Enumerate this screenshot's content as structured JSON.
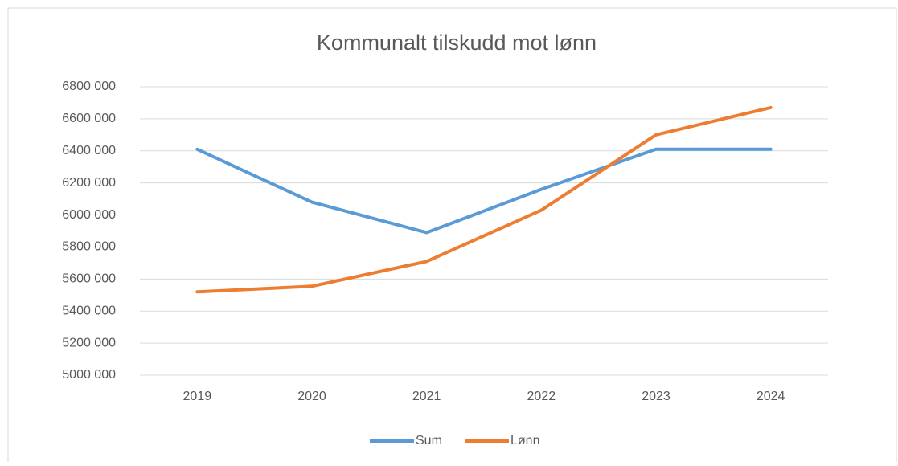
{
  "chart_data": {
    "type": "line",
    "title": "Kommunalt tilskudd mot lønn",
    "categories": [
      "2019",
      "2020",
      "2021",
      "2022",
      "2023",
      "2024"
    ],
    "series": [
      {
        "name": "Sum",
        "color": "#5b9bd5",
        "values": [
          6410000,
          6080000,
          5890000,
          6160000,
          6410000,
          6410000
        ]
      },
      {
        "name": "Lønn",
        "color": "#ed7d31",
        "values": [
          5520000,
          5555000,
          5710000,
          6030000,
          6500000,
          6670000
        ]
      }
    ],
    "ylim": [
      5000000,
      6800000
    ],
    "yticks": [
      {
        "value": 5000000,
        "label": "5000 000"
      },
      {
        "value": 5200000,
        "label": "5200 000"
      },
      {
        "value": 5400000,
        "label": "5400 000"
      },
      {
        "value": 5600000,
        "label": "5600 000"
      },
      {
        "value": 5800000,
        "label": "5800 000"
      },
      {
        "value": 6000000,
        "label": "6000 000"
      },
      {
        "value": 6200000,
        "label": "6200 000"
      },
      {
        "value": 6400000,
        "label": "6400 000"
      },
      {
        "value": 6600000,
        "label": "6600 000"
      },
      {
        "value": 6800000,
        "label": "6800 000"
      }
    ],
    "grid": true,
    "legend": "bottom"
  }
}
